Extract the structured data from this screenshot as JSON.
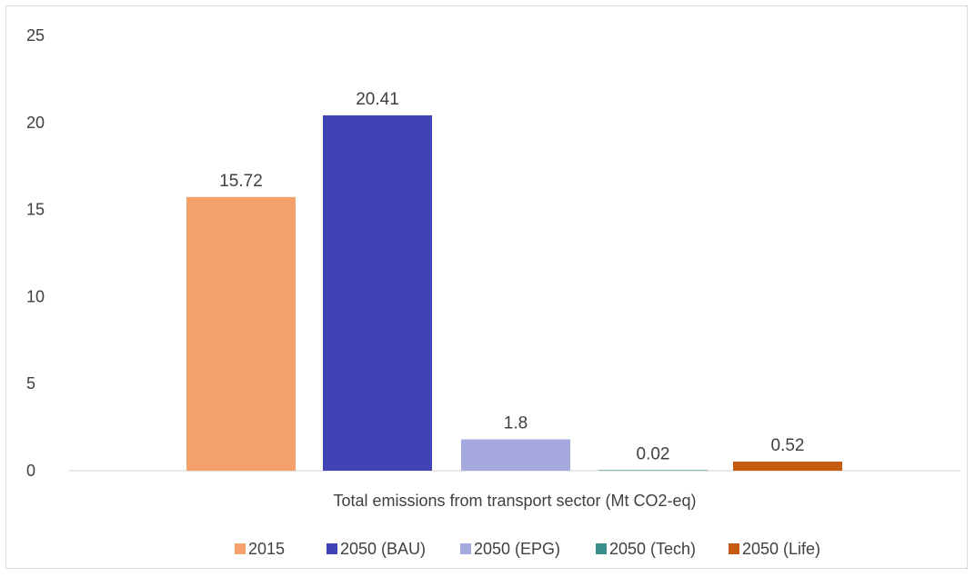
{
  "chart_data": {
    "type": "bar",
    "categories": [
      "Total emissions from transport sector (Mt CO2-eq)"
    ],
    "series": [
      {
        "name": "2015",
        "values": [
          15.72
        ],
        "color": "#F4A06A"
      },
      {
        "name": "2050 (BAU)",
        "values": [
          20.41
        ],
        "color": "#4043B3"
      },
      {
        "name": "2050 (EPG)",
        "values": [
          1.8
        ],
        "color": "#A6A8E0"
      },
      {
        "name": "2050 (Tech)",
        "values": [
          0.02
        ],
        "color": "#3A8F8A"
      },
      {
        "name": "2050 (Life)",
        "values": [
          0.52
        ],
        "color": "#C55A11"
      }
    ],
    "data_labels": [
      "15.72",
      "20.41",
      "1.8",
      "0.02",
      "0.52"
    ],
    "yticks": [
      "0",
      "5",
      "10",
      "15",
      "20",
      "25"
    ],
    "ylim": [
      0,
      25
    ],
    "grid": false,
    "legend": "bottom",
    "axis_color": "#d9d9d9",
    "text_color": "#404040"
  }
}
